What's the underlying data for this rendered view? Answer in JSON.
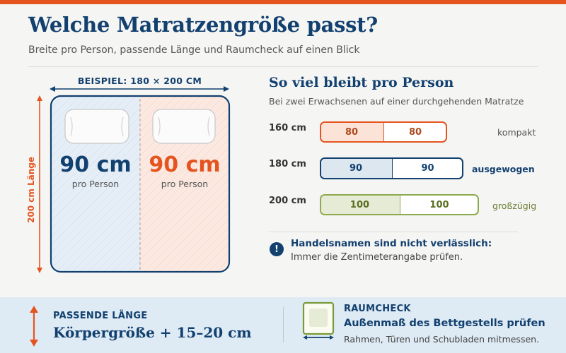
{
  "header": {
    "title": "Welche Matratzengröße passt?",
    "subtitle": "Breite pro Person, passende Länge und Raumcheck auf einen Blick"
  },
  "bed": {
    "width_label": "BEISPIEL: 180 × 200 CM",
    "height_label": "200 cm Länge",
    "left": {
      "value": "90 cm",
      "caption": "pro Person"
    },
    "right": {
      "value": "90 cm",
      "caption": "pro Person"
    }
  },
  "per_person": {
    "title": "So viel bleibt pro Person",
    "subtitle": "Bei zwei Erwachsenen auf einer durchgehenden Matratze",
    "rows": [
      {
        "size": "160 cm",
        "left": "80",
        "right": "80",
        "tag": "kompakt"
      },
      {
        "size": "180 cm",
        "left": "90",
        "right": "90",
        "tag": "ausgewogen"
      },
      {
        "size": "200 cm",
        "left": "100",
        "right": "100",
        "tag": "großzügig"
      }
    ]
  },
  "note": {
    "icon_text": "!",
    "title": "Handelsnamen sind nicht verlässlich:",
    "text": "Immer die Zentimeterangabe prüfen."
  },
  "footer": {
    "length": {
      "label": "PASSENDE LÄNGE",
      "value": "Körpergröße + 15–20 cm"
    },
    "room": {
      "label": "RAUMCHECK",
      "value": "Außenmaß des Bettgestells prüfen",
      "text": "Rahmen, Türen und Schubladen mitmessen."
    }
  },
  "colors": {
    "navy": "#12406f",
    "orange": "#e5541e",
    "olive": "#7a9a3a",
    "background": "#f5f5f4",
    "footer_bg": "#deeaf4"
  }
}
